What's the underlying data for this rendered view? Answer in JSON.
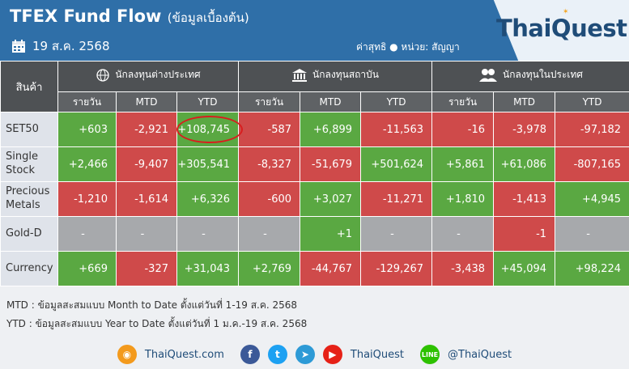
{
  "header": {
    "title": "TFEX Fund Flow",
    "subtitle": "(ข้อมูลเบื้องต้น)",
    "date": "19 ส.ค. 2568",
    "unit_note": "ค่าสุทธิ  ●  หน่วย: สัญญา",
    "brand": "ThaiQuest"
  },
  "table": {
    "product_header": "สินค้า",
    "groups": [
      "นักลงทุนต่างประเทศ",
      "นักลงทุนสถาบัน",
      "นักลงทุนในประเทศ"
    ],
    "subheaders": [
      "รายวัน",
      "MTD",
      "YTD"
    ],
    "rows": [
      {
        "name": "SET50",
        "values": [
          "+603",
          "-2,921",
          "+108,745",
          "-587",
          "+6,899",
          "-11,563",
          "-16",
          "-3,978",
          "-97,182"
        ]
      },
      {
        "name": "Single Stock",
        "values": [
          "+2,466",
          "-9,407",
          "+305,541",
          "-8,327",
          "-51,679",
          "+501,624",
          "+5,861",
          "+61,086",
          "-807,165"
        ]
      },
      {
        "name": "Precious Metals",
        "values": [
          "-1,210",
          "-1,614",
          "+6,326",
          "-600",
          "+3,027",
          "-11,271",
          "+1,810",
          "-1,413",
          "+4,945"
        ]
      },
      {
        "name": "Gold-D",
        "values": [
          "-",
          "-",
          "-",
          "-",
          "+1",
          "-",
          "-",
          "-1",
          "-"
        ]
      },
      {
        "name": "Currency",
        "values": [
          "+669",
          "-327",
          "+31,043",
          "+2,769",
          "-44,767",
          "-129,267",
          "-3,438",
          "+45,094",
          "+98,224"
        ]
      }
    ]
  },
  "notes": {
    "mtd": "MTD : ข้อมูลสะสมแบบ Month to Date ตั้งแต่วันที่ 1-19 ส.ค. 2568",
    "ytd": "YTD : ข้อมูลสะสมแบบ Year to Date ตั้งแต่วันที่ 1 ม.ค.-19 ส.ค. 2568"
  },
  "footer": {
    "website": "ThaiQuest.com",
    "youtube_name": "ThaiQuest",
    "line_id": "@ThaiQuest"
  },
  "colors": {
    "positive": "#5aa842",
    "negative": "#cf4a4a",
    "neutral": "#a7a9ac",
    "header_blue": "#2f6fa8"
  }
}
